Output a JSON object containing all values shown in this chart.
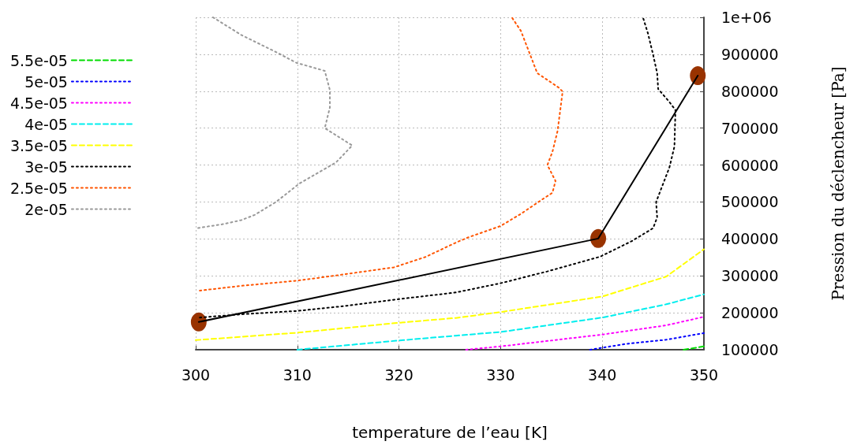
{
  "chart_data": {
    "type": "line",
    "xlabel": "temperature de l’eau [K]",
    "ylabel": "Pression du déclencheur [Pa]",
    "xlim": [
      300,
      350
    ],
    "xticks": [
      300,
      310,
      320,
      330,
      340,
      350
    ],
    "ylim": [
      100000,
      1000000
    ],
    "yticks": [
      100000,
      200000,
      300000,
      400000,
      500000,
      600000,
      700000,
      800000,
      900000,
      {
        "value": 1000000,
        "label": "1e+06"
      }
    ],
    "grid": true,
    "legend": "left",
    "marker": "none",
    "series": [
      {
        "name": "5.5e-05",
        "color": "#00dd00",
        "line_style": "dashed",
        "x": [
          348,
          350
        ],
        "values": [
          100000,
          109000
        ]
      },
      {
        "name": "5e-05",
        "color": "#0000ff",
        "line_style": "dotted",
        "x": [
          338.8,
          342.4,
          346.3,
          350
        ],
        "values": [
          100000,
          116000,
          127000,
          145000
        ]
      },
      {
        "name": "4.5e-05",
        "color": "#ff00ff",
        "line_style": "dotted",
        "x": [
          326.6,
          330,
          340,
          346.3,
          350
        ],
        "values": [
          100000,
          109000,
          141000,
          166000,
          189000
        ]
      },
      {
        "name": "4e-05",
        "color": "#00eeee",
        "line_style": "dashed",
        "x": [
          310,
          320,
          325.6,
          330,
          340,
          346.3,
          350
        ],
        "values": [
          100000,
          125000,
          138000,
          148000,
          187000,
          223000,
          250000
        ]
      },
      {
        "name": "3.5e-05",
        "color": "#ffff00",
        "line_style": "dashed",
        "x": [
          300,
          310,
          320,
          325.6,
          330,
          340,
          346.3,
          350
        ],
        "values": [
          126000,
          146000,
          173000,
          186000,
          202000,
          244000,
          298000,
          372000
        ]
      },
      {
        "name": "3e-05",
        "color": "#000000",
        "line_style": "dotted",
        "x": [
          300.4,
          304.5,
          310,
          314.9,
          320,
          325.6,
          330,
          334.6,
          339.8,
          342.9,
          345,
          345.4,
          345.3,
          345.8,
          346.6,
          347.1,
          347.2,
          346.6,
          345.5,
          345.4,
          345,
          344.5,
          344
        ],
        "values": [
          187000,
          196000,
          205000,
          219000,
          237000,
          255000,
          280000,
          312000,
          352000,
          394000,
          429000,
          458000,
          500000,
          536000,
          593000,
          650000,
          749000,
          771000,
          806000,
          849000,
          899000,
          956000,
          1000000
        ]
      },
      {
        "name": "2.5e-05",
        "color": "#ff5500",
        "line_style": "dotted",
        "x": [
          300.4,
          304.5,
          310,
          313.8,
          319.5,
          322.6,
          325.6,
          326.8,
          330,
          332,
          334.1,
          335.1,
          335.4,
          334.6,
          335.1,
          335.6,
          336.1,
          335.7,
          333.6,
          332.9,
          332,
          331.1
        ],
        "values": [
          260000,
          273000,
          287000,
          301000,
          323000,
          351000,
          390000,
          404000,
          435000,
          468000,
          507000,
          525000,
          557000,
          600000,
          636000,
          692000,
          799000,
          810000,
          849000,
          899000,
          963000,
          1000000
        ]
      },
      {
        "name": "2e-05",
        "color": "#999999",
        "line_style": "dotted",
        "x": [
          301.7,
          304.5,
          307.9,
          309.9,
          312.7,
          313.2,
          313.2,
          312.7,
          315.4,
          313.8,
          310.2,
          307.9,
          305.8,
          304.5,
          302.7,
          300.1
        ],
        "values": [
          1000000,
          952000,
          906000,
          877000,
          855000,
          803000,
          756000,
          700000,
          653000,
          607000,
          550000,
          500000,
          465000,
          451000,
          440000,
          429000
        ]
      },
      {
        "type": "line",
        "color": "#000000",
        "line_style": "solid",
        "x": [
          300.3,
          339.6,
          349.4
        ],
        "values": [
          175000,
          401000,
          842000
        ]
      },
      {
        "type": "scatter",
        "color": "#993300",
        "marker": "circle",
        "x": [
          300.3,
          339.6,
          349.4
        ],
        "values": [
          175000,
          401000,
          842000
        ]
      }
    ]
  }
}
